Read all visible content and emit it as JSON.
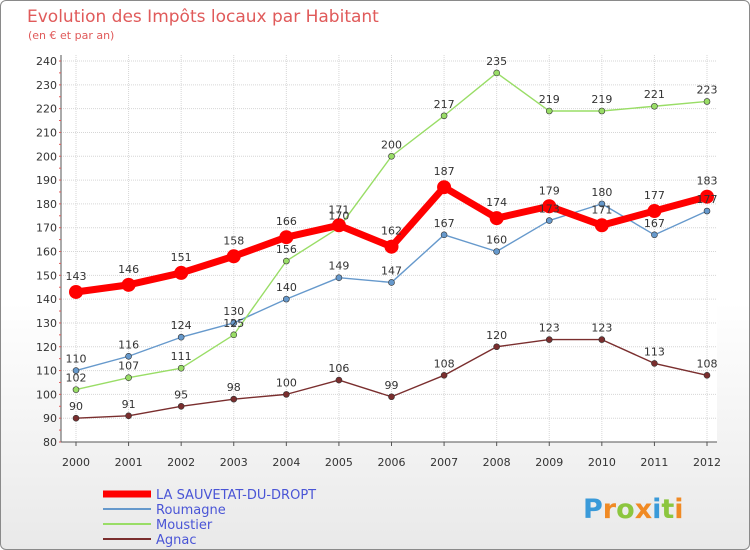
{
  "chart_data": {
    "type": "line",
    "title": "Evolution des Impôts locaux par Habitant",
    "subtitle": "(en € et par an)",
    "x": [
      "2000",
      "2001",
      "2002",
      "2003",
      "2004",
      "2005",
      "2006",
      "2007",
      "2008",
      "2009",
      "2010",
      "2011",
      "2012"
    ],
    "ylim": [
      80,
      240
    ],
    "yticks": [
      80,
      90,
      100,
      110,
      120,
      130,
      140,
      150,
      160,
      170,
      180,
      190,
      200,
      210,
      220,
      230,
      240
    ],
    "grid": true,
    "legend_position": "bottom-left",
    "series": [
      {
        "name": "LA SAUVETAT-DU-DROPT",
        "color": "#ff0000",
        "width": 7,
        "marker": 7,
        "values": [
          143,
          146,
          151,
          158,
          166,
          171,
          162,
          187,
          174,
          179,
          171,
          177,
          183
        ]
      },
      {
        "name": "Roumagne",
        "color": "#6699cc",
        "width": 1.4,
        "marker": 3,
        "values": [
          110,
          116,
          124,
          130,
          140,
          149,
          147,
          167,
          160,
          173,
          180,
          167,
          177
        ]
      },
      {
        "name": "Moustier",
        "color": "#99dd66",
        "width": 1.4,
        "marker": 3,
        "values": [
          102,
          107,
          111,
          125,
          156,
          170,
          200,
          217,
          235,
          219,
          219,
          221,
          223
        ]
      },
      {
        "name": "Agnac",
        "color": "#7a2e2e",
        "width": 1.4,
        "marker": 3,
        "values": [
          90,
          91,
          95,
          98,
          100,
          106,
          99,
          108,
          120,
          123,
          123,
          113,
          108
        ]
      }
    ]
  },
  "brand": {
    "letters": [
      "P",
      "r",
      "o",
      "x",
      "i",
      "t",
      "i"
    ],
    "colors": [
      "#3a9ad9",
      "#f08a24",
      "#8cc63f",
      "#f08a24",
      "#3a9ad9",
      "#8cc63f",
      "#f08a24"
    ]
  }
}
